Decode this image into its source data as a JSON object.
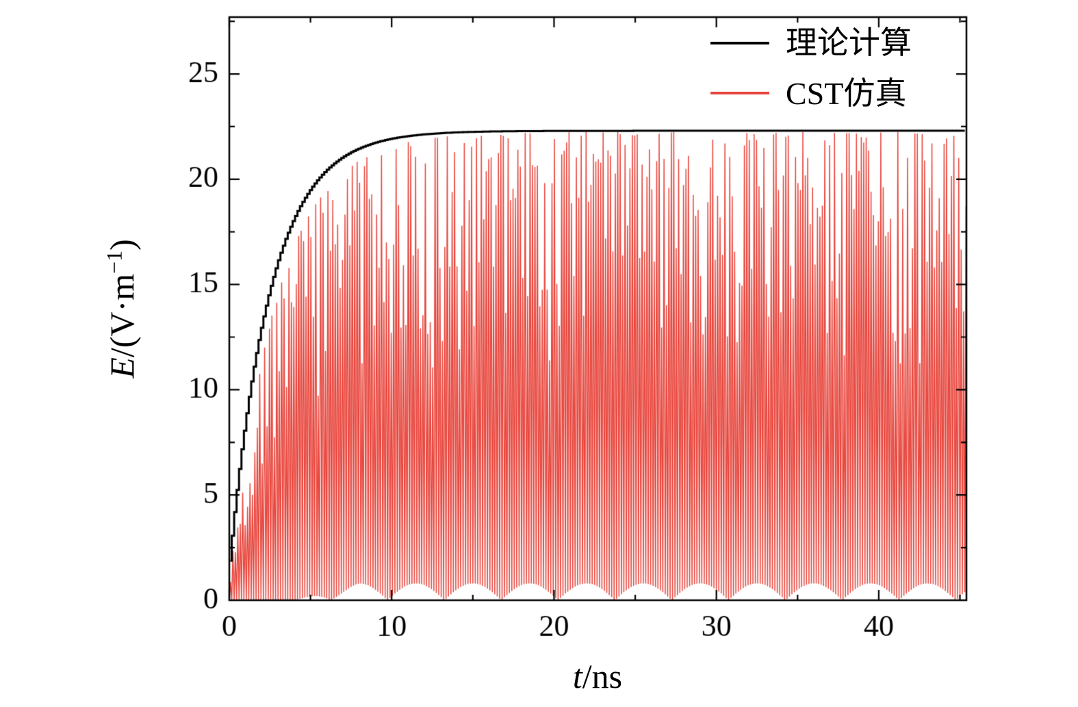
{
  "chart_data": {
    "type": "line",
    "title": "",
    "xlabel": {
      "var": "t",
      "rest": "/ns"
    },
    "ylabel": {
      "var": "E",
      "mid": "/(V·m",
      "sup": "−1",
      "end": ")"
    },
    "xlim": [
      0,
      45.4
    ],
    "ylim": [
      0,
      27.7
    ],
    "x_ticks": [
      0,
      10,
      20,
      30,
      40
    ],
    "x_minor_step": 5,
    "y_ticks": [
      0,
      5,
      10,
      15,
      20,
      25
    ],
    "y_minor_step": 2.5,
    "grid": false,
    "legend_position": "top-right",
    "legend": [
      {
        "label": "理论计算",
        "color": "#000000"
      },
      {
        "label": "CST仿真",
        "color": "#e8463d"
      }
    ],
    "series": [
      {
        "name": "理论计算",
        "kind": "envelope-staircase",
        "color": "#000000",
        "model": {
          "E_max": 22.3,
          "tau": 2.5,
          "t0": 0.22,
          "step_ns": 0.15
        },
        "points": {
          "t": [
            0,
            0.5,
            1,
            1.5,
            2,
            2.5,
            3,
            3.5,
            4,
            4.5,
            5,
            6,
            7,
            8,
            9,
            10,
            12,
            14,
            16,
            20,
            25,
            30,
            35,
            40,
            45
          ],
          "E": [
            1.9,
            4.8,
            8.3,
            11.0,
            13.1,
            14.9,
            16.2,
            17.3,
            18.2,
            18.9,
            19.5,
            20.4,
            21.0,
            21.5,
            21.7,
            21.9,
            22.1,
            22.2,
            22.25,
            22.3,
            22.3,
            22.3,
            22.3,
            22.3,
            22.3
          ]
        }
      },
      {
        "name": "CST仿真",
        "kind": "rectified-oscillation",
        "color": "#e8463d",
        "model": {
          "E_max": 22.25,
          "tau": 2.9,
          "t0": 0.1,
          "period_ns": 0.3,
          "bottom_amp": 0.8,
          "scallop_period": 3.5,
          "scallop_center": 8,
          "apex_jitter": 0.5
        }
      }
    ]
  }
}
